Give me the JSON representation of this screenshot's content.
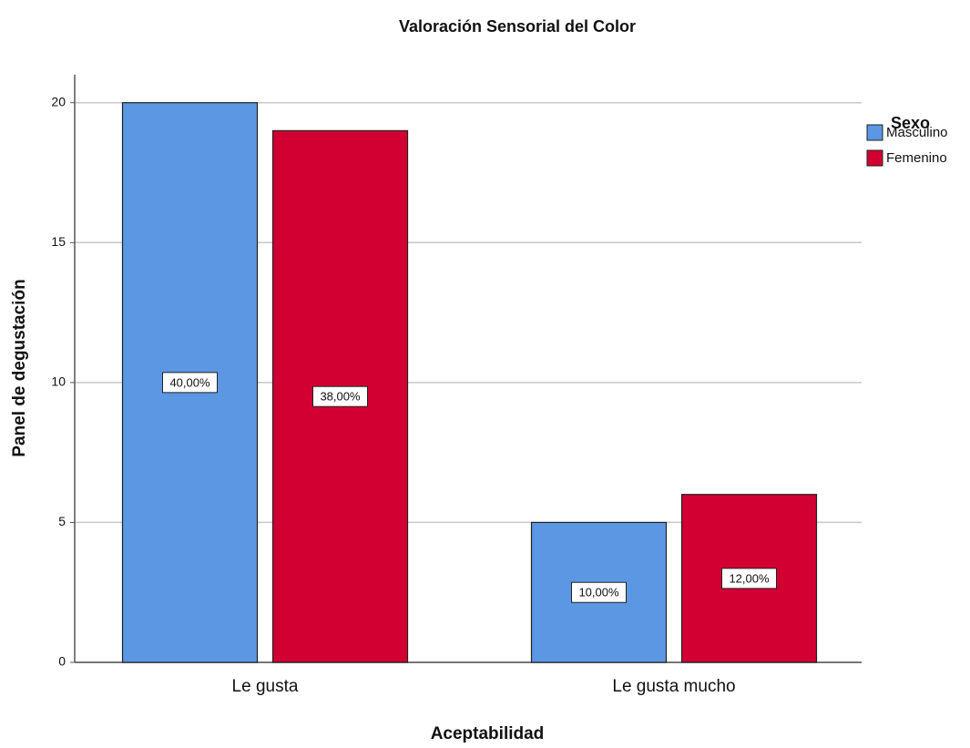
{
  "chart_data": {
    "type": "bar",
    "title": "Valoración Sensorial del Color",
    "x_label": "Aceptabilidad",
    "y_label": "Panel de degustación",
    "legend_title": "Sexo",
    "legend_position": "right",
    "grid": true,
    "categories": [
      "Le gusta",
      "Le gusta mucho"
    ],
    "series": [
      {
        "name": "Masculino",
        "color": "#5b97e3",
        "values": [
          20,
          5
        ],
        "percent_labels": [
          "40,00%",
          "10,00%"
        ]
      },
      {
        "name": "Femenino",
        "color": "#d20032",
        "values": [
          19,
          6
        ],
        "percent_labels": [
          "38,00%",
          "12,00%"
        ]
      }
    ],
    "ylim": [
      0,
      21
    ],
    "yticks": [
      0,
      5,
      10,
      15,
      20
    ]
  }
}
